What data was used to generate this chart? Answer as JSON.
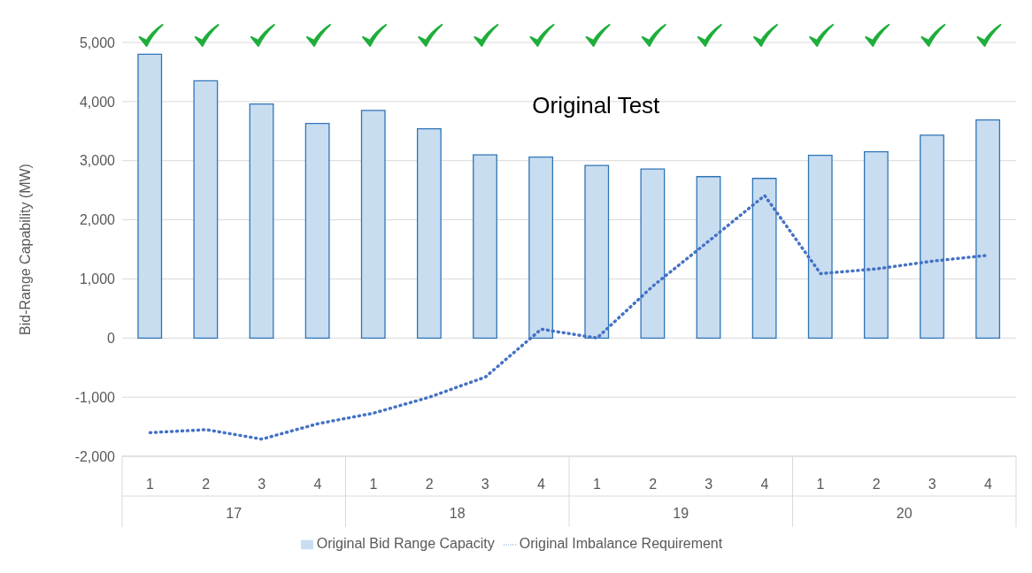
{
  "chart_data": {
    "type": "bar",
    "title": "Original Test",
    "ylabel": "Bid-Range Capability (MW)",
    "categories": [
      "1",
      "2",
      "3",
      "4",
      "1",
      "2",
      "3",
      "4",
      "1",
      "2",
      "3",
      "4",
      "1",
      "2",
      "3",
      "4"
    ],
    "annotations": [
      "17",
      "18",
      "19",
      "20"
    ],
    "series": [
      {
        "name": "Original Bid Range Capacity",
        "color": "#c9ddf1",
        "values": [
          4800,
          4350,
          3960,
          3630,
          3850,
          3540,
          3100,
          3060,
          2920,
          2860,
          2730,
          2700,
          3090,
          3150,
          3430,
          3690
        ]
      },
      {
        "name": "Original Imbalance Requirement",
        "type": "line",
        "color": "#4472c4",
        "line_style": "dotted",
        "marker": "none",
        "values": [
          -1600,
          -1550,
          -1710,
          -1450,
          -1270,
          -1000,
          -660,
          150,
          0,
          880,
          1640,
          2410,
          1090,
          1170,
          1300,
          1400
        ]
      }
    ],
    "ylim": [
      -2000,
      5000
    ],
    "yticks": [
      {
        "value": -2000,
        "label": "-2,000"
      },
      {
        "value": -1000,
        "label": "-1,000"
      },
      0,
      {
        "value": 1000,
        "label": "1,000"
      },
      {
        "value": 2000,
        "label": "2,000"
      },
      {
        "value": 3000,
        "label": "3,000"
      },
      {
        "value": 4000,
        "label": "4,000"
      },
      {
        "value": 5000,
        "label": "5,000"
      }
    ],
    "grid": "y",
    "legend": "bottom"
  }
}
